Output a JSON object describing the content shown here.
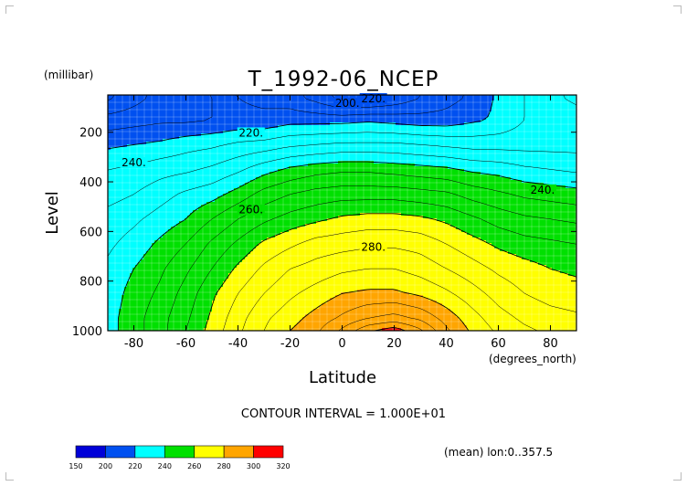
{
  "chart_data": {
    "type": "contour",
    "title": "T_1992-06_NCEP",
    "xlabel": "Latitude",
    "x_units": "(degrees_north)",
    "ylabel": "Level",
    "y_units": "(millibar)",
    "xlim": [
      -90,
      90
    ],
    "ylim": [
      1000,
      50
    ],
    "y_inverted": true,
    "x_ticks": [
      "-80",
      "-60",
      "-40",
      "-20",
      "0",
      "20",
      "40",
      "60",
      "80"
    ],
    "y_ticks": [
      "200",
      "400",
      "600",
      "800",
      "1000"
    ],
    "contour_labels": [
      "220.",
      "200.",
      "220.",
      "240.",
      "240.",
      "260.",
      "280."
    ],
    "latitudes": [
      -90,
      -80,
      -70,
      -60,
      -50,
      -40,
      -30,
      -20,
      -10,
      0,
      10,
      20,
      30,
      40,
      50,
      60,
      70,
      80,
      90
    ],
    "levels": [
      60,
      150,
      250,
      350,
      450,
      550,
      650,
      750,
      850,
      950,
      1000
    ],
    "temperature": [
      [
        204,
        208,
        212,
        215,
        215,
        215,
        214,
        212,
        208,
        203,
        203,
        206,
        210,
        213,
        216,
        221,
        225,
        229,
        231
      ],
      [
        212,
        213,
        214,
        214,
        215,
        216,
        216,
        218,
        218,
        218,
        219,
        218,
        217,
        217,
        219,
        221,
        225,
        227,
        228
      ],
      [
        219,
        220,
        221,
        223,
        224,
        226,
        227,
        229,
        230,
        231,
        231,
        231,
        230,
        229,
        228,
        228,
        228,
        228,
        228
      ],
      [
        225,
        226,
        228,
        229,
        231,
        234,
        238,
        241,
        243,
        244,
        244,
        243,
        242,
        241,
        239,
        238,
        236,
        235,
        234
      ],
      [
        228,
        230,
        233,
        236,
        238,
        242,
        247,
        250,
        252,
        253,
        253,
        253,
        252,
        251,
        248,
        246,
        244,
        243,
        242
      ],
      [
        232,
        234,
        237,
        240,
        245,
        250,
        254,
        257,
        259,
        261,
        262,
        262,
        261,
        259,
        256,
        253,
        251,
        250,
        249
      ],
      [
        234,
        237,
        241,
        245,
        251,
        256,
        261,
        264,
        267,
        268,
        269,
        269,
        268,
        265,
        262,
        259,
        257,
        256,
        255
      ],
      [
        236,
        240,
        244,
        249,
        255,
        261,
        266,
        270,
        272,
        274,
        275,
        275,
        273,
        270,
        267,
        264,
        262,
        260,
        259
      ],
      [
        237,
        242,
        246,
        252,
        259,
        265,
        270,
        274,
        277,
        280,
        281,
        281,
        279,
        276,
        272,
        268,
        265,
        263,
        262
      ],
      [
        238,
        243,
        248,
        254,
        261,
        268,
        274,
        278,
        282,
        286,
        290,
        292,
        289,
        283,
        277,
        272,
        269,
        267,
        266
      ],
      [
        238,
        243,
        248,
        255,
        262,
        269,
        275,
        280,
        284,
        291,
        299,
        303,
        296,
        286,
        279,
        274,
        271,
        269,
        267
      ]
    ],
    "colorbar": {
      "boundaries": [
        "150",
        "200",
        "220",
        "240",
        "260",
        "280",
        "300",
        "320"
      ],
      "colors": [
        "#0000d8",
        "#0050f0",
        "#00ffff",
        "#00e000",
        "#ffff00",
        "#ffa500",
        "#ff0000"
      ]
    },
    "contour_interval": "CONTOUR INTERVAL = 1.000E+01",
    "footnote": "(mean) lon:0..357.5"
  },
  "palette": {
    "grid": "#ffffff",
    "line": "#000000",
    "frame": "#000000"
  }
}
